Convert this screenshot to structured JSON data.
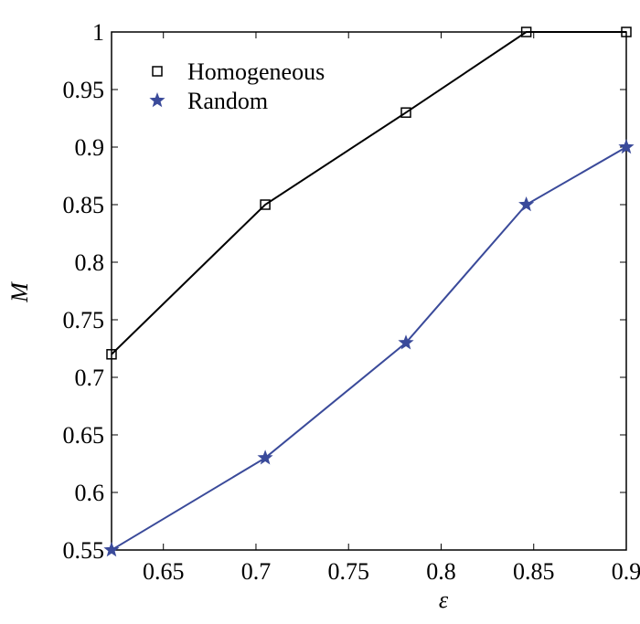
{
  "chart_data": {
    "type": "line",
    "x_label": "ε",
    "y_label": "M",
    "x": [
      0.622,
      0.705,
      0.781,
      0.846,
      0.9
    ],
    "series": [
      {
        "name": "Homogeneous",
        "color": "#000000",
        "marker": "square",
        "values": [
          0.72,
          0.85,
          0.93,
          1,
          1
        ]
      },
      {
        "name": "Random",
        "color": "#3a4a9a",
        "marker": "star",
        "values": [
          0.55,
          0.63,
          0.73,
          0.85,
          0.9
        ]
      }
    ],
    "xlim": [
      0.622,
      0.9
    ],
    "xticks": [
      0.65,
      0.7,
      0.75,
      0.8,
      0.85,
      0.9
    ],
    "ylim": [
      0.55,
      1
    ],
    "yticks": [
      0.55,
      0.6,
      0.65,
      0.7,
      0.75,
      0.8,
      0.85,
      0.9,
      0.95,
      1
    ],
    "legend": "upper left",
    "grid": false
  }
}
